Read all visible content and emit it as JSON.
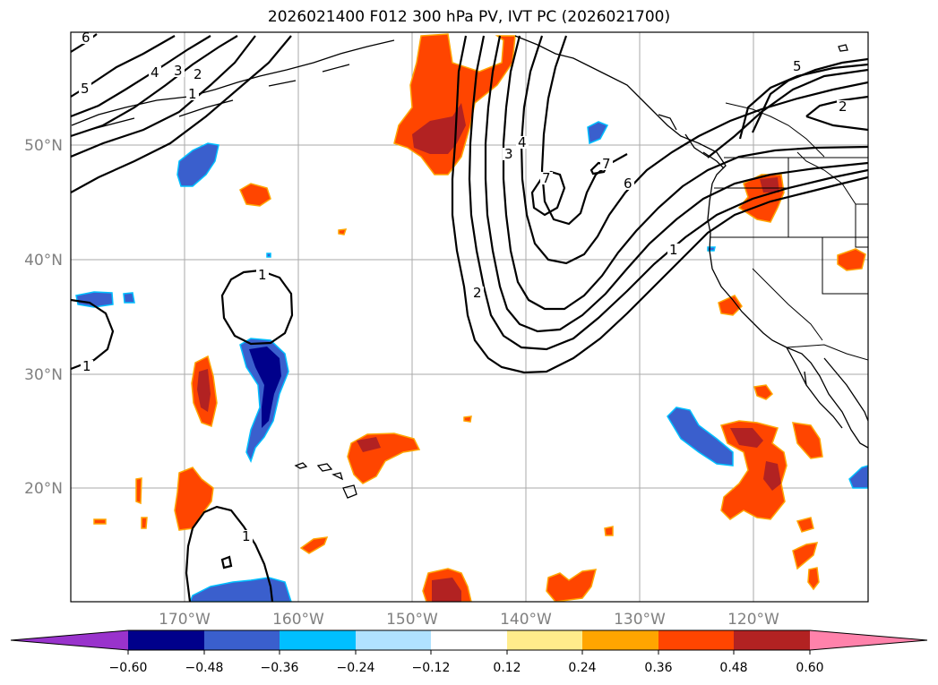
{
  "title": "2026021400 F012 300 hPa PV, IVT PC (2026021700)",
  "longitude_labels": [
    "170°W",
    "160°W",
    "150°W",
    "140°W",
    "130°W",
    "120°W"
  ],
  "latitude_labels": [
    "50°N",
    "40°N",
    "30°N",
    "20°N"
  ],
  "colorbar": {
    "tick_labels": [
      "−0.60",
      "−0.48",
      "−0.36",
      "−0.24",
      "−0.12",
      "0.12",
      "0.24",
      "0.36",
      "0.48",
      "0.60"
    ],
    "colors": [
      "#9933cc",
      "#00008b",
      "#3a5fcd",
      "#00bfff",
      "#b0e2ff",
      "#ffffff",
      "#ffec8b",
      "#ffa500",
      "#ff4500",
      "#b22222",
      "#ff82ab"
    ]
  },
  "contour_labels": [
    "6",
    "5",
    "4",
    "3",
    "2",
    "1",
    "1",
    "1",
    "1",
    "2",
    "3",
    "4",
    "7",
    "7",
    "6",
    "5",
    "2",
    "1"
  ],
  "colors": {
    "orange_red": "#ff4500",
    "dark_red": "#b22222",
    "royal_blue": "#3a5fcd",
    "navy": "#00008b",
    "gold_edge": "#ffa500",
    "cyan_edge": "#00bfff",
    "grid": "#aaaaaa"
  }
}
